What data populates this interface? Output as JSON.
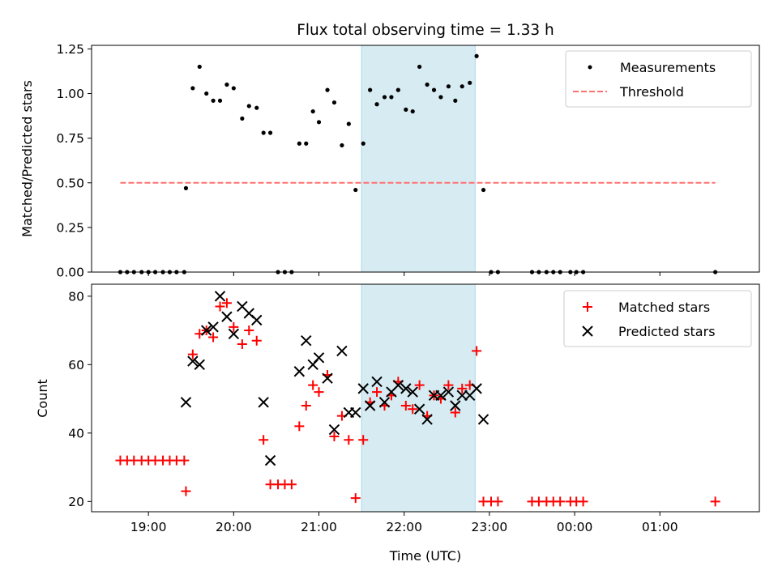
{
  "title": "Flux total observing time = 1.33 h",
  "shaded_region": {
    "start_hour": 21.5,
    "end_hour": 22.833,
    "color": "#add8e6"
  },
  "chart_data": [
    {
      "type": "scatter",
      "ylabel": "Matched/Predicted stars",
      "ylim": [
        0,
        1.27
      ],
      "xlim": [
        18.333,
        26.167
      ],
      "yticks": [
        0.0,
        0.25,
        0.5,
        0.75,
        1.0,
        1.25
      ],
      "ytick_labels": [
        "0.00",
        "0.25",
        "0.50",
        "0.75",
        "1.00",
        "1.25"
      ],
      "legend_position": "upper right",
      "series": [
        {
          "name": "Measurements",
          "marker": "dot",
          "color": "#000000",
          "points": [
            [
              18.67,
              0
            ],
            [
              18.75,
              0
            ],
            [
              18.83,
              0
            ],
            [
              18.92,
              0
            ],
            [
              19.0,
              0
            ],
            [
              19.08,
              0
            ],
            [
              19.17,
              0
            ],
            [
              19.25,
              0
            ],
            [
              19.33,
              0
            ],
            [
              19.42,
              0
            ],
            [
              19.44,
              0.47
            ],
            [
              19.52,
              1.03
            ],
            [
              19.6,
              1.15
            ],
            [
              19.68,
              1.0
            ],
            [
              19.76,
              0.96
            ],
            [
              19.84,
              0.96
            ],
            [
              19.92,
              1.05
            ],
            [
              20.0,
              1.03
            ],
            [
              20.1,
              0.86
            ],
            [
              20.18,
              0.93
            ],
            [
              20.27,
              0.92
            ],
            [
              20.35,
              0.78
            ],
            [
              20.43,
              0.78
            ],
            [
              20.52,
              0
            ],
            [
              20.6,
              0
            ],
            [
              20.68,
              0
            ],
            [
              20.77,
              0.72
            ],
            [
              20.85,
              0.72
            ],
            [
              20.93,
              0.9
            ],
            [
              21.0,
              0.84
            ],
            [
              21.1,
              1.02
            ],
            [
              21.18,
              0.95
            ],
            [
              21.27,
              0.71
            ],
            [
              21.35,
              0.83
            ],
            [
              21.43,
              0.46
            ],
            [
              21.52,
              0.72
            ],
            [
              21.6,
              1.02
            ],
            [
              21.68,
              0.94
            ],
            [
              21.77,
              0.98
            ],
            [
              21.85,
              0.98
            ],
            [
              21.93,
              1.02
            ],
            [
              22.02,
              0.91
            ],
            [
              22.1,
              0.9
            ],
            [
              22.18,
              1.15
            ],
            [
              22.27,
              1.05
            ],
            [
              22.35,
              1.02
            ],
            [
              22.43,
              0.98
            ],
            [
              22.52,
              1.04
            ],
            [
              22.6,
              0.96
            ],
            [
              22.68,
              1.04
            ],
            [
              22.77,
              1.06
            ],
            [
              22.85,
              1.21
            ],
            [
              22.93,
              0.46
            ],
            [
              23.02,
              0
            ],
            [
              23.1,
              0
            ],
            [
              23.5,
              0
            ],
            [
              23.58,
              0
            ],
            [
              23.67,
              0
            ],
            [
              23.75,
              0
            ],
            [
              23.83,
              0
            ],
            [
              23.95,
              0
            ],
            [
              24.02,
              0
            ],
            [
              24.1,
              0
            ],
            [
              25.65,
              0
            ]
          ]
        },
        {
          "name": "Threshold",
          "marker": "dashed-line",
          "color": "#ff7070",
          "x_range": [
            18.67,
            25.65
          ],
          "value": 0.5
        }
      ]
    },
    {
      "type": "scatter",
      "xlabel": "Time (UTC)",
      "ylabel": "Count",
      "ylim": [
        17,
        83.5
      ],
      "xlim": [
        18.333,
        26.167
      ],
      "yticks": [
        20,
        40,
        60,
        80
      ],
      "ytick_labels": [
        "20",
        "40",
        "60",
        "80"
      ],
      "xticks": [
        19,
        20,
        21,
        22,
        23,
        24,
        25
      ],
      "xtick_labels": [
        "19:00",
        "20:00",
        "21:00",
        "22:00",
        "23:00",
        "00:00",
        "01:00"
      ],
      "legend_position": "upper right",
      "series": [
        {
          "name": "Matched stars",
          "marker": "plus",
          "color": "#ff0000",
          "points": [
            [
              18.67,
              32
            ],
            [
              18.75,
              32
            ],
            [
              18.83,
              32
            ],
            [
              18.92,
              32
            ],
            [
              19.0,
              32
            ],
            [
              19.08,
              32
            ],
            [
              19.17,
              32
            ],
            [
              19.25,
              32
            ],
            [
              19.33,
              32
            ],
            [
              19.42,
              32
            ],
            [
              19.44,
              23
            ],
            [
              19.52,
              63
            ],
            [
              19.6,
              69
            ],
            [
              19.68,
              70
            ],
            [
              19.76,
              68
            ],
            [
              19.84,
              77
            ],
            [
              19.92,
              78
            ],
            [
              20.0,
              71
            ],
            [
              20.1,
              66
            ],
            [
              20.18,
              70
            ],
            [
              20.27,
              67
            ],
            [
              20.35,
              38
            ],
            [
              20.43,
              25
            ],
            [
              20.52,
              25
            ],
            [
              20.6,
              25
            ],
            [
              20.68,
              25
            ],
            [
              20.77,
              42
            ],
            [
              20.85,
              48
            ],
            [
              20.93,
              54
            ],
            [
              21.0,
              52
            ],
            [
              21.1,
              57
            ],
            [
              21.18,
              39
            ],
            [
              21.27,
              45
            ],
            [
              21.35,
              38
            ],
            [
              21.43,
              21
            ],
            [
              21.52,
              38
            ],
            [
              21.6,
              49
            ],
            [
              21.68,
              52
            ],
            [
              21.77,
              48
            ],
            [
              21.85,
              51
            ],
            [
              21.93,
              55
            ],
            [
              22.02,
              48
            ],
            [
              22.1,
              47
            ],
            [
              22.18,
              54
            ],
            [
              22.27,
              45
            ],
            [
              22.35,
              51
            ],
            [
              22.43,
              50
            ],
            [
              22.52,
              54
            ],
            [
              22.6,
              46
            ],
            [
              22.68,
              53
            ],
            [
              22.77,
              54
            ],
            [
              22.85,
              64
            ],
            [
              22.93,
              20
            ],
            [
              23.02,
              20
            ],
            [
              23.1,
              20
            ],
            [
              23.5,
              20
            ],
            [
              23.58,
              20
            ],
            [
              23.67,
              20
            ],
            [
              23.75,
              20
            ],
            [
              23.83,
              20
            ],
            [
              23.95,
              20
            ],
            [
              24.02,
              20
            ],
            [
              24.1,
              20
            ],
            [
              25.65,
              20
            ]
          ]
        },
        {
          "name": "Predicted stars",
          "marker": "x",
          "color": "#000000",
          "points": [
            [
              19.44,
              49
            ],
            [
              19.52,
              61
            ],
            [
              19.6,
              60
            ],
            [
              19.68,
              70
            ],
            [
              19.76,
              71
            ],
            [
              19.84,
              80
            ],
            [
              19.92,
              74
            ],
            [
              20.0,
              69
            ],
            [
              20.1,
              77
            ],
            [
              20.18,
              75
            ],
            [
              20.27,
              73
            ],
            [
              20.35,
              49
            ],
            [
              20.43,
              32
            ],
            [
              20.77,
              58
            ],
            [
              20.85,
              67
            ],
            [
              20.93,
              60
            ],
            [
              21.0,
              62
            ],
            [
              21.1,
              56
            ],
            [
              21.18,
              41
            ],
            [
              21.27,
              64
            ],
            [
              21.35,
              46
            ],
            [
              21.43,
              46
            ],
            [
              21.52,
              53
            ],
            [
              21.6,
              48
            ],
            [
              21.68,
              55
            ],
            [
              21.77,
              49
            ],
            [
              21.85,
              52
            ],
            [
              21.93,
              54
            ],
            [
              22.02,
              53
            ],
            [
              22.1,
              52
            ],
            [
              22.18,
              47
            ],
            [
              22.27,
              44
            ],
            [
              22.35,
              51
            ],
            [
              22.43,
              51
            ],
            [
              22.52,
              52
            ],
            [
              22.6,
              48
            ],
            [
              22.68,
              51
            ],
            [
              22.77,
              51
            ],
            [
              22.85,
              53
            ],
            [
              22.93,
              44
            ]
          ]
        }
      ]
    }
  ]
}
